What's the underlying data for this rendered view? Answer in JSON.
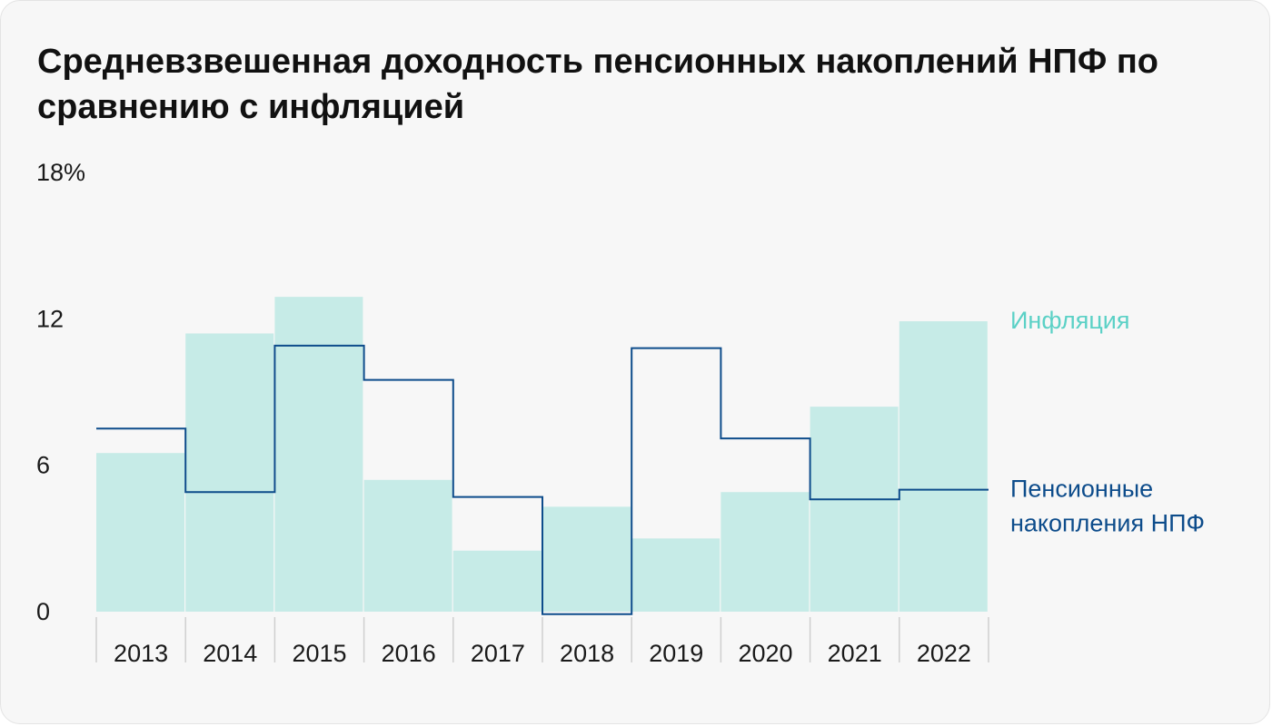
{
  "chart_data": {
    "type": "bar",
    "title": "Средневзвешенная доходность пенсионных накоплений НПФ по сравнению с инфляцией",
    "y_tick_labels": [
      "0",
      "6",
      "12",
      "18%"
    ],
    "ylim": [
      0,
      18
    ],
    "categories": [
      "2013",
      "2014",
      "2015",
      "2016",
      "2017",
      "2018",
      "2019",
      "2020",
      "2021",
      "2022"
    ],
    "series": [
      {
        "name": "Инфляция",
        "render": "bar",
        "color": "#c6ebe7",
        "values": [
          6.5,
          11.4,
          12.9,
          5.4,
          2.5,
          4.3,
          3.0,
          4.9,
          8.4,
          11.9
        ]
      },
      {
        "name": "Пенсионные накопления НПФ",
        "render": "step-line",
        "color": "#0d4c8b",
        "values": [
          7.5,
          4.9,
          10.9,
          9.5,
          4.7,
          -0.1,
          10.8,
          7.1,
          4.6,
          5.0
        ]
      }
    ],
    "legend": [
      {
        "label": "Инфляция",
        "color": "#5bd1c6",
        "placement": "right, beside last bar"
      },
      {
        "label_lines": [
          "Пенсионные",
          "накопления НПФ"
        ],
        "color": "#0d4c8b",
        "placement": "right, beside last step"
      }
    ],
    "grid": false
  }
}
